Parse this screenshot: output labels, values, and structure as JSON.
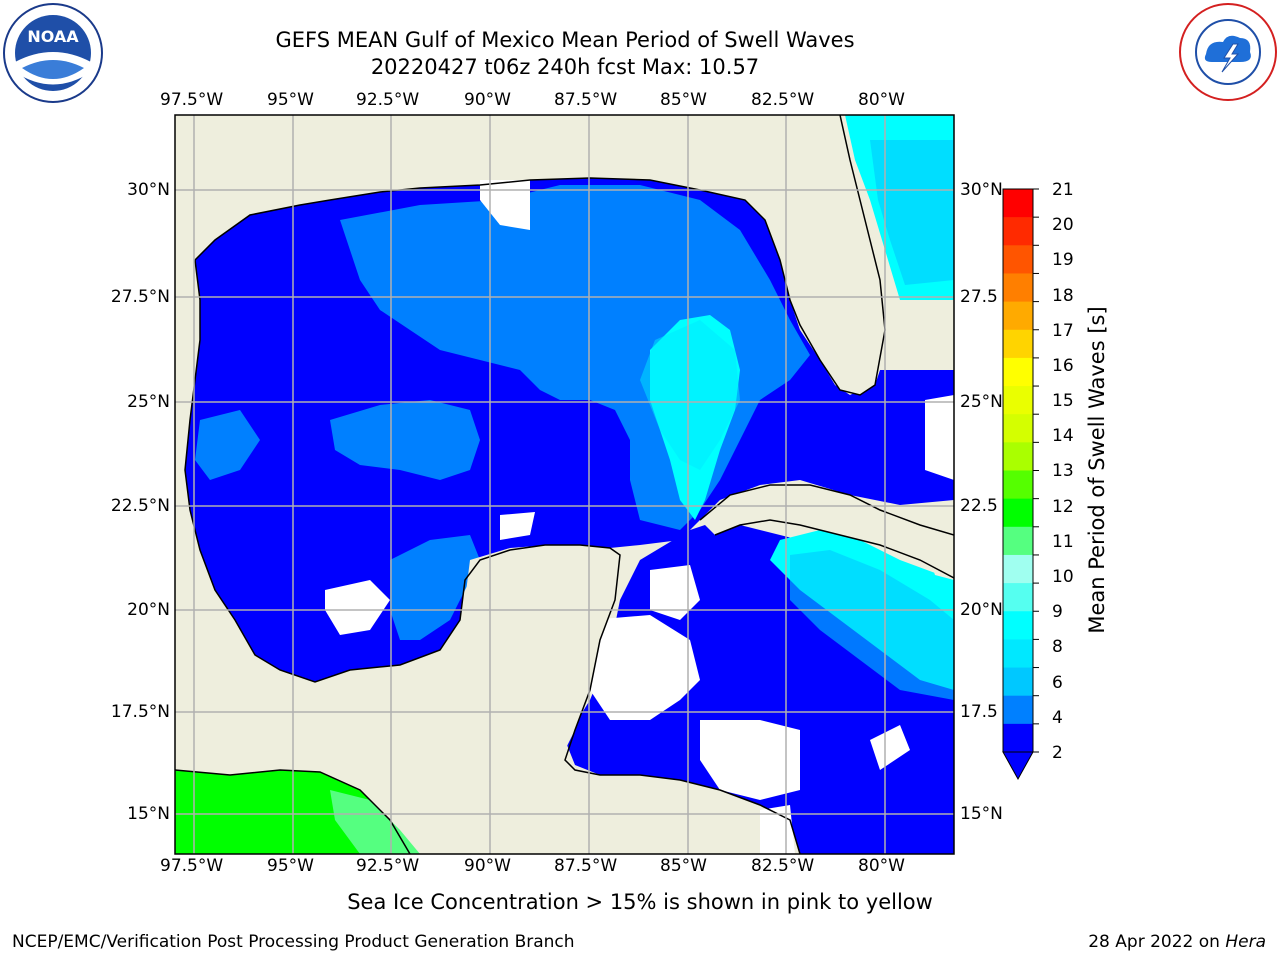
{
  "title_line1": "GEFS MEAN Gulf of Mexico Mean Period of Swell Waves",
  "title_line2": "20220427 t06z 240h fcst   Max: 10.57",
  "lon_labels": [
    "97.5°W",
    "95°W",
    "92.5°W",
    "90°W",
    "87.5°W",
    "85°W",
    "82.5°W",
    "80°W"
  ],
  "lat_labels_left": [
    "30°N",
    "27.5°N",
    "25°N",
    "22.5°N",
    "20°N",
    "17.5°N",
    "15°N"
  ],
  "lat_labels_right": [
    "30°N",
    "27.5",
    "25°N",
    "22.5",
    "20°N",
    "17.5",
    "15°N"
  ],
  "colorbar": {
    "label": "Mean Period of Swell Waves [s]",
    "ticks": [
      "21",
      "20",
      "19",
      "18",
      "17",
      "16",
      "15",
      "14",
      "13",
      "12",
      "11",
      "10",
      "9",
      "8",
      "7",
      "6",
      "5",
      "4",
      "3",
      "2"
    ],
    "tick_labels": [
      "21",
      "20",
      "19",
      "18",
      "17",
      "16",
      "15",
      "14",
      "13",
      "12",
      "11",
      "10",
      "9",
      "8",
      "6",
      "4",
      "2"
    ],
    "colors": [
      "#ff0000",
      "#ff2a00",
      "#ff5500",
      "#ff7f00",
      "#ffaa00",
      "#ffd400",
      "#ffff00",
      "#eaff00",
      "#d4ff00",
      "#aaff00",
      "#55ff00",
      "#00ff00",
      "#55ff80",
      "#a0fff0",
      "#55fff0",
      "#00ffff",
      "#00e8ff",
      "#00c8ff",
      "#0080ff",
      "#0000ff"
    ]
  },
  "map_colors": {
    "land": "#eeeedd",
    "dark_blue": "#0000ff",
    "mid_blue": "#0080ff",
    "light_blue": "#00c8ff",
    "cyan": "#00ffff",
    "green": "#00ff00",
    "light_green": "#55ff80",
    "missing": "#ffffff"
  },
  "note": "Sea Ice Concentration > 15% is shown in pink to yellow",
  "footer_left": "NCEP/EMC/Verification Post Processing Product Generation Branch",
  "footer_date": "28 Apr 2022 on ",
  "footer_machine": "Hera",
  "logos": {
    "left": "NOAA",
    "right": "NATIONAL WEATHER SERVICE"
  }
}
